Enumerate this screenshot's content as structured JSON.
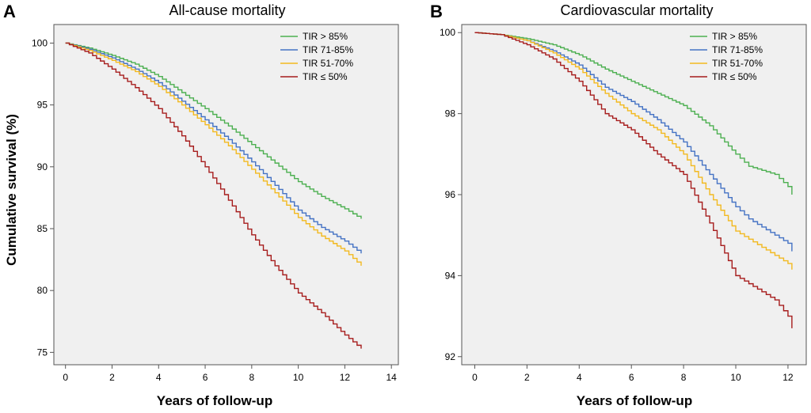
{
  "chart_data": [
    {
      "panel_letter": "A",
      "type": "line",
      "title": "All-cause mortality",
      "xlabel": "Years of follow-up",
      "ylabel": "Cumulative survival (%)",
      "xlim": [
        -0.5,
        14.3
      ],
      "ylim": [
        74,
        101.5
      ],
      "xticks": [
        0,
        2,
        4,
        6,
        8,
        10,
        12,
        14
      ],
      "yticks": [
        75,
        80,
        85,
        90,
        95,
        100
      ],
      "grid": false,
      "legend": "top-right",
      "background": "#f0f0f0",
      "series": [
        {
          "name": "TIR > 85%",
          "color": "#4caf50",
          "x": [
            0,
            1,
            2,
            3,
            4,
            5,
            6,
            7,
            8,
            9,
            10,
            11,
            12,
            12.7
          ],
          "y": [
            100,
            99.6,
            99.0,
            98.3,
            97.3,
            96.0,
            94.7,
            93.3,
            91.8,
            90.3,
            88.8,
            87.6,
            86.6,
            85.8
          ]
        },
        {
          "name": "TIR 71-85%",
          "color": "#4472c4",
          "x": [
            0,
            1,
            2,
            3,
            4,
            5,
            6,
            7,
            8,
            9,
            10,
            11,
            12,
            12.7
          ],
          "y": [
            100,
            99.5,
            98.8,
            97.9,
            96.8,
            95.3,
            93.8,
            92.2,
            90.4,
            88.5,
            86.5,
            85.1,
            84.0,
            83.0
          ]
        },
        {
          "name": "TIR 51-70%",
          "color": "#f2b91f",
          "x": [
            0,
            1,
            2,
            3,
            4,
            5,
            6,
            7,
            8,
            9,
            10,
            11,
            12,
            12.7
          ],
          "y": [
            100,
            99.4,
            98.6,
            97.7,
            96.5,
            95.0,
            93.4,
            91.7,
            89.8,
            87.9,
            85.9,
            84.4,
            83.2,
            82.0
          ]
        },
        {
          "name": "TIR ≤ 50%",
          "color": "#a61c1c",
          "x": [
            0,
            1,
            2,
            3,
            4,
            5,
            6,
            7,
            8,
            9,
            10,
            11,
            12,
            12.7
          ],
          "y": [
            100,
            99.2,
            97.9,
            96.4,
            94.7,
            92.5,
            90.0,
            87.3,
            84.5,
            82.0,
            79.8,
            78.2,
            76.4,
            75.3
          ]
        }
      ]
    },
    {
      "panel_letter": "B",
      "type": "line",
      "title": "Cardiovascular mortality",
      "xlabel": "Years of follow-up",
      "ylabel": "",
      "xlim": [
        -0.5,
        12.7
      ],
      "ylim": [
        91.8,
        100.2
      ],
      "xticks": [
        0,
        2,
        4,
        6,
        8,
        10,
        12
      ],
      "yticks": [
        92,
        94,
        96,
        98,
        100
      ],
      "grid": false,
      "legend": "top-right",
      "background": "#f0f0f0",
      "series": [
        {
          "name": "TIR > 85%",
          "color": "#4caf50",
          "x": [
            0,
            1,
            2,
            3,
            4,
            5,
            6,
            7,
            8,
            9,
            10,
            10.5,
            11,
            11.5,
            12,
            12.15
          ],
          "y": [
            100,
            99.95,
            99.85,
            99.7,
            99.45,
            99.1,
            98.8,
            98.5,
            98.2,
            97.7,
            97.0,
            96.7,
            96.6,
            96.5,
            96.2,
            96.0
          ]
        },
        {
          "name": "TIR 71-85%",
          "color": "#4472c4",
          "x": [
            0,
            1,
            2,
            3,
            4,
            5,
            6,
            7,
            8,
            9,
            10,
            10.5,
            11,
            11.5,
            12,
            12.15
          ],
          "y": [
            100,
            99.95,
            99.8,
            99.55,
            99.2,
            98.65,
            98.3,
            97.85,
            97.3,
            96.5,
            95.7,
            95.4,
            95.2,
            95.0,
            94.8,
            94.6
          ]
        },
        {
          "name": "TIR 51-70%",
          "color": "#f2b91f",
          "x": [
            0,
            1,
            2,
            3,
            4,
            5,
            6,
            7,
            8,
            9,
            10,
            10.5,
            11,
            11.5,
            12,
            12.15
          ],
          "y": [
            100,
            99.95,
            99.8,
            99.5,
            99.1,
            98.5,
            98.0,
            97.6,
            97.0,
            96.0,
            95.1,
            94.9,
            94.7,
            94.5,
            94.3,
            94.15
          ]
        },
        {
          "name": "TIR ≤ 50%",
          "color": "#a61c1c",
          "x": [
            0,
            1,
            2,
            3,
            4,
            5,
            6,
            7,
            8,
            9,
            10,
            10.5,
            11,
            11.5,
            12,
            12.15
          ],
          "y": [
            100,
            99.95,
            99.7,
            99.35,
            98.8,
            98.0,
            97.6,
            97.0,
            96.5,
            95.3,
            94.0,
            93.8,
            93.6,
            93.4,
            93.0,
            92.7
          ]
        }
      ]
    }
  ]
}
